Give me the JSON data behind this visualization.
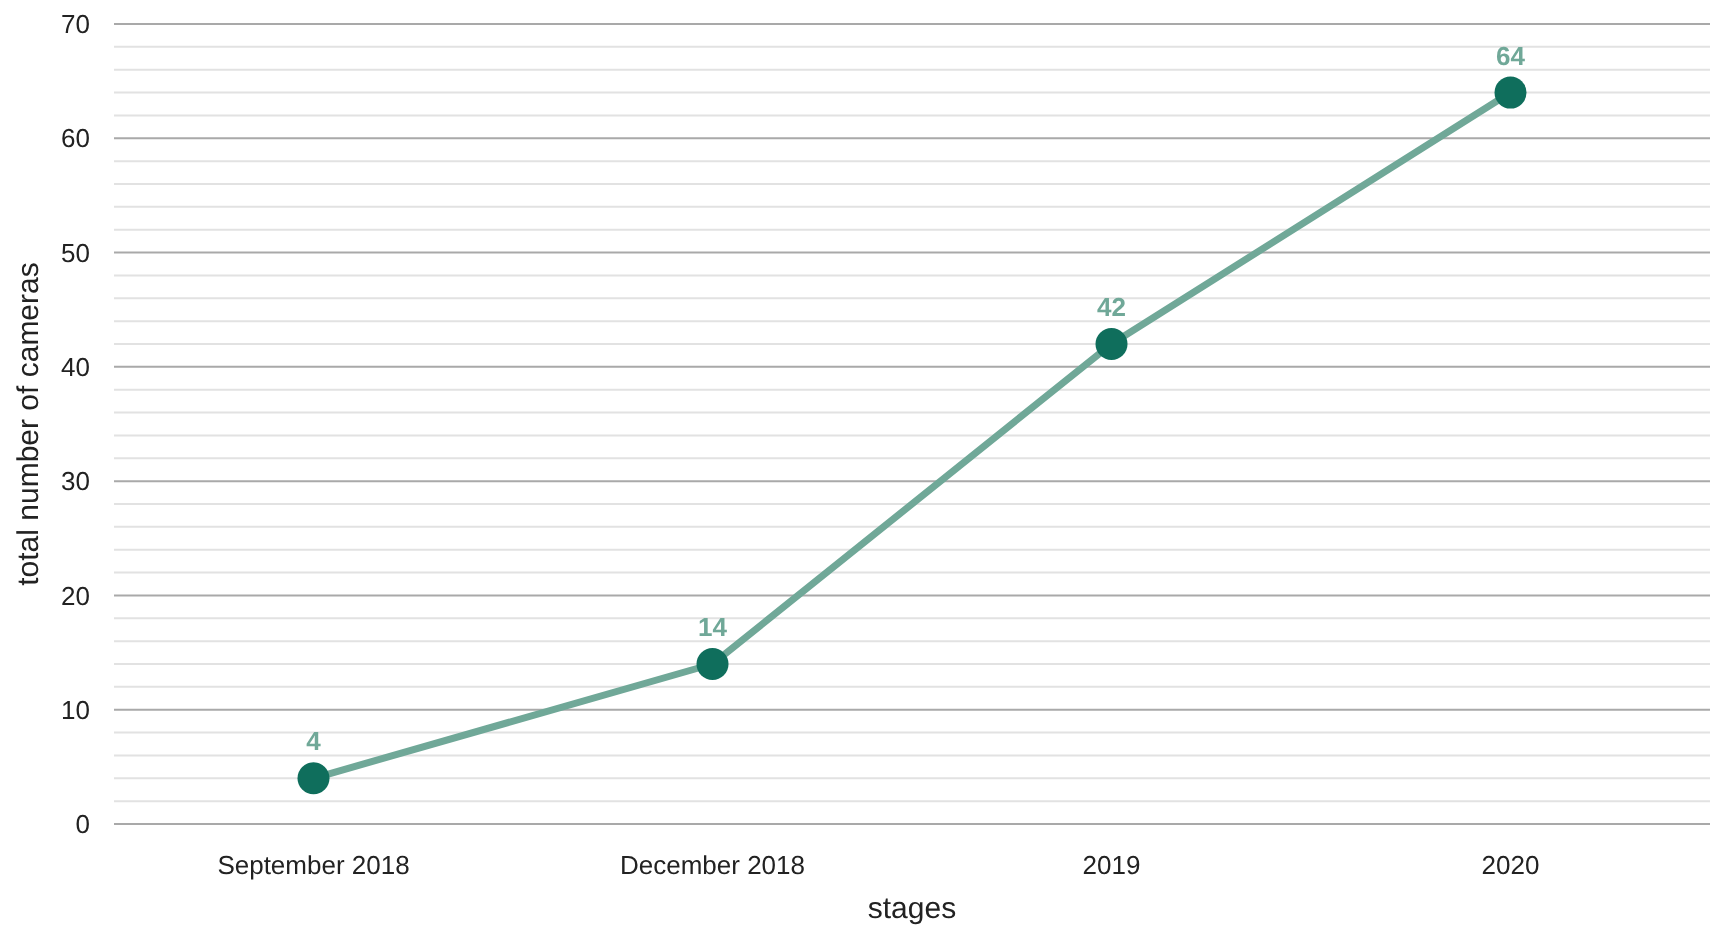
{
  "chart_data": {
    "type": "line",
    "xlabel": "stages",
    "ylabel": "total number of cameras",
    "categories": [
      "September 2018",
      "December 2018",
      "2019",
      "2020"
    ],
    "series": [
      {
        "color": "#70a898",
        "values": [
          4,
          14,
          42,
          64
        ]
      }
    ],
    "ylim": [
      0,
      70
    ],
    "yticks": [
      0,
      {
        "value": 2,
        "label": null
      },
      {
        "value": 4,
        "label": null
      },
      {
        "value": 6,
        "label": null
      },
      {
        "value": 8,
        "label": null
      },
      10,
      {
        "value": 12,
        "label": null
      },
      {
        "value": 14,
        "label": null
      },
      {
        "value": 16,
        "label": null
      },
      {
        "value": 18,
        "label": null
      },
      20,
      {
        "value": 22,
        "label": null
      },
      {
        "value": 24,
        "label": null
      },
      {
        "value": 26,
        "label": null
      },
      {
        "value": 28,
        "label": null
      },
      30,
      {
        "value": 32,
        "label": null
      },
      {
        "value": 34,
        "label": null
      },
      {
        "value": 36,
        "label": null
      },
      {
        "value": 38,
        "label": null
      },
      40,
      {
        "value": 42,
        "label": null
      },
      {
        "value": 44,
        "label": null
      },
      {
        "value": 46,
        "label": null
      },
      {
        "value": 48,
        "label": null
      },
      50,
      {
        "value": 52,
        "label": null
      },
      {
        "value": 54,
        "label": null
      },
      {
        "value": 56,
        "label": null
      },
      {
        "value": 58,
        "label": null
      },
      60,
      {
        "value": 62,
        "label": null
      },
      {
        "value": 64,
        "label": null
      },
      {
        "value": 66,
        "label": null
      },
      {
        "value": 68,
        "label": null
      },
      70
    ],
    "grid": "y",
    "marker": "circle",
    "line_style": "solid",
    "data_labels": true
  }
}
